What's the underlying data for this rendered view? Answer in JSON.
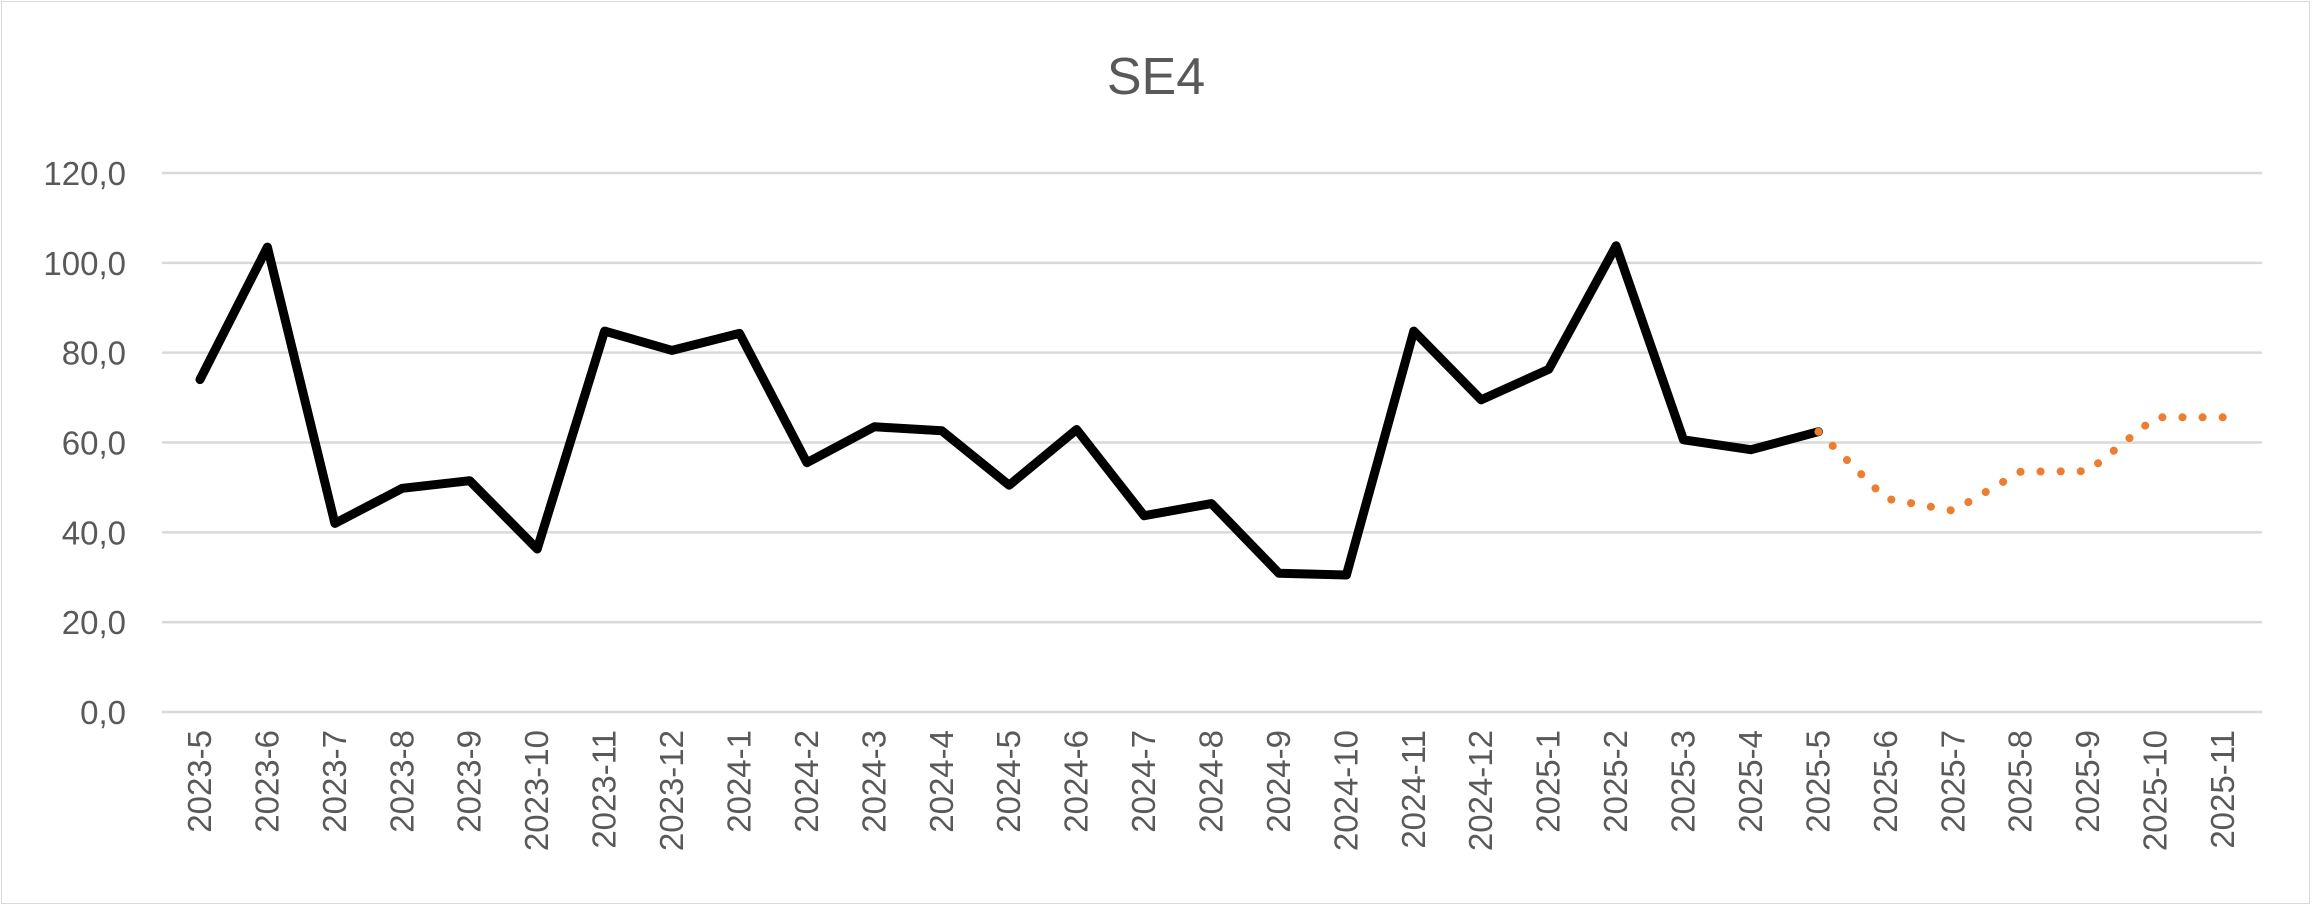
{
  "chart_data": {
    "type": "line",
    "title": "SE4",
    "xlabel": "",
    "ylabel": "",
    "ylim": [
      0,
      120
    ],
    "yticks": [
      "0,0",
      "20,0",
      "40,0",
      "60,0",
      "80,0",
      "100,0",
      "120,0"
    ],
    "ytick_values": [
      0,
      20,
      40,
      60,
      80,
      100,
      120
    ],
    "grid": true,
    "legend": "none",
    "categories": [
      "2023-5",
      "2023-6",
      "2023-7",
      "2023-8",
      "2023-9",
      "2023-10",
      "2023-11",
      "2023-12",
      "2024-1",
      "2024-2",
      "2024-3",
      "2024-4",
      "2024-5",
      "2024-6",
      "2024-7",
      "2024-8",
      "2024-9",
      "2024-10",
      "2024-11",
      "2024-12",
      "2025-1",
      "2025-2",
      "2025-3",
      "2025-4",
      "2025-5",
      "2025-6",
      "2025-7",
      "2025-8",
      "2025-9",
      "2025-10",
      "2025-11"
    ],
    "series": [
      {
        "style": "solid",
        "color": "#000000",
        "values": [
          74.0,
          103.5,
          42.0,
          49.8,
          51.5,
          36.3,
          84.8,
          80.5,
          84.3,
          55.5,
          63.5,
          62.6,
          50.5,
          62.9,
          43.7,
          46.4,
          30.9,
          30.5,
          84.8,
          69.5,
          76.3,
          103.8,
          60.6,
          58.4,
          62.4,
          null,
          null,
          null,
          null,
          null,
          null
        ]
      },
      {
        "style": "dotted",
        "color": "#ED7D31",
        "values": [
          null,
          null,
          null,
          null,
          null,
          null,
          null,
          null,
          null,
          null,
          null,
          null,
          null,
          null,
          null,
          null,
          null,
          null,
          null,
          null,
          null,
          null,
          null,
          null,
          62.4,
          47.5,
          44.8,
          53.5,
          53.6,
          65.6,
          65.6
        ]
      }
    ]
  }
}
